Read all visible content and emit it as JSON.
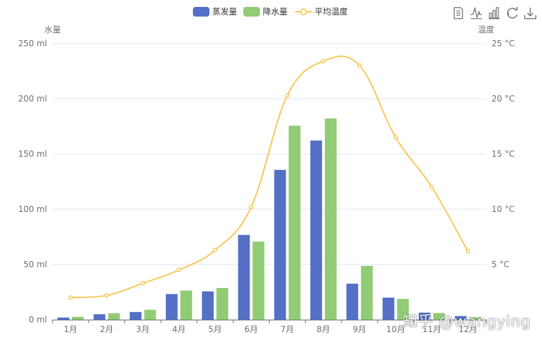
{
  "chart_data": {
    "type": "bar",
    "categories": [
      "1月",
      "2月",
      "3月",
      "4月",
      "5月",
      "6月",
      "7月",
      "8月",
      "9月",
      "10月",
      "11月",
      "12月"
    ],
    "series": [
      {
        "name": "蒸发量",
        "type": "bar",
        "color": "#5470c6",
        "axis": "left",
        "values": [
          2.0,
          4.9,
          7.0,
          23.2,
          25.6,
          76.7,
          135.6,
          162.2,
          32.6,
          20.0,
          6.4,
          3.3
        ]
      },
      {
        "name": "降水量",
        "type": "bar",
        "color": "#91cc75",
        "axis": "left",
        "values": [
          2.6,
          5.9,
          9.0,
          26.4,
          28.7,
          70.7,
          175.6,
          182.2,
          48.7,
          18.8,
          6.0,
          2.3
        ]
      },
      {
        "name": "平均温度",
        "type": "line",
        "color": "#fac858",
        "axis": "right",
        "values": [
          2.0,
          2.2,
          3.3,
          4.5,
          6.3,
          10.2,
          20.3,
          23.4,
          23.0,
          16.5,
          12.0,
          6.2
        ]
      }
    ],
    "ylabel": "水量",
    "y2label": "温度",
    "ylim": [
      0,
      250
    ],
    "y2lim": [
      0,
      25
    ],
    "y_ticks": [
      "0 ml",
      "50 ml",
      "100 ml",
      "150 ml",
      "200 ml",
      "250 ml"
    ],
    "y2_ticks": [
      "5 °C",
      "10 °C",
      "15 °C",
      "20 °C",
      "25 °C"
    ],
    "legend_position": "top-center",
    "grid": "horizontal"
  },
  "toolbox": [
    "data-view-icon",
    "magic-line-icon",
    "magic-bar-icon",
    "restore-icon",
    "save-image-icon"
  ],
  "watermark": "知乎 @wangying"
}
